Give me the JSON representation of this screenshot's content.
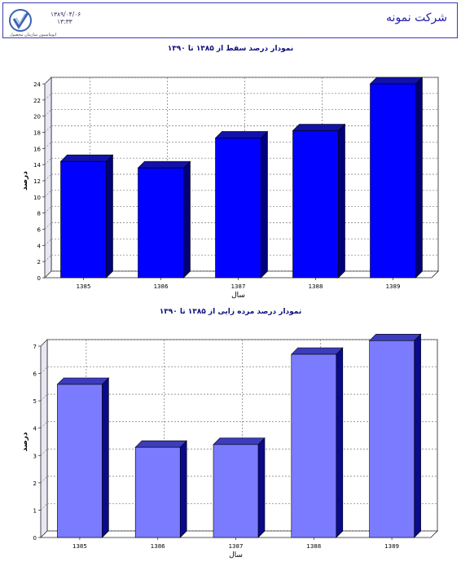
{
  "header": {
    "company_name": "شرکت نمونه",
    "date": "۱۳۸۹/۰۴/۰۶",
    "time": "۱۳:۳۳",
    "logo_caption": "اتوماسیون سازمان محصول"
  },
  "colors": {
    "frame": "#3c3cb4",
    "chart1_front": "#0000ff",
    "chart1_top": "#1212a8",
    "chart1_side": "#00007a",
    "chart2_front": "#7b7bff",
    "chart2_top": "#3c3cbe",
    "chart2_side": "#0a0a8c"
  },
  "chart_data": [
    {
      "type": "bar",
      "title": "نمودار درصد سقط از ۱۳۸۵ تا ۱۳۹۰",
      "xlabel": "سال",
      "ylabel": "درصد",
      "categories": [
        "1385",
        "1386",
        "1387",
        "1388",
        "1389"
      ],
      "values": [
        14.4,
        13.6,
        17.3,
        18.2,
        24.0
      ],
      "ylim": [
        0,
        24
      ],
      "yticks": [
        "0",
        "2",
        "4",
        "6",
        "8",
        "10",
        "12",
        "14",
        "16",
        "18",
        "20",
        "22",
        "24"
      ],
      "grid": true
    },
    {
      "type": "bar",
      "title": "نمودار درصد مرده زایی از ۱۳۸۵ تا ۱۳۹۰",
      "xlabel": "سال",
      "ylabel": "درصد",
      "categories": [
        "1385",
        "1386",
        "1387",
        "1388",
        "1389"
      ],
      "values": [
        5.6,
        3.3,
        3.4,
        6.7,
        7.2
      ],
      "ylim": [
        0,
        7
      ],
      "yticks": [
        "0",
        "1",
        "2",
        "3",
        "4",
        "5",
        "6",
        "7"
      ],
      "grid": true
    }
  ]
}
